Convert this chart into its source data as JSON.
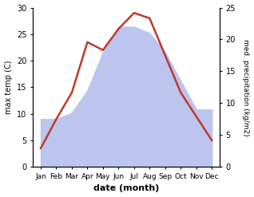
{
  "months": [
    "Jan",
    "Feb",
    "Mar",
    "Apr",
    "May",
    "Jun",
    "Jul",
    "Aug",
    "Sep",
    "Oct",
    "Nov",
    "Dec"
  ],
  "month_positions": [
    1,
    2,
    3,
    4,
    5,
    6,
    7,
    8,
    9,
    10,
    11,
    12
  ],
  "temperature": [
    3.5,
    9.0,
    14.0,
    23.5,
    22.0,
    26.0,
    29.0,
    28.0,
    21.0,
    14.0,
    9.5,
    5.0
  ],
  "precipitation": [
    7.5,
    7.5,
    8.5,
    12.0,
    18.0,
    22.0,
    22.0,
    21.0,
    18.0,
    13.5,
    9.0,
    9.0
  ],
  "temp_color": "#c0392b",
  "precip_color": "#bbc5ee",
  "temp_ylim": [
    0,
    30
  ],
  "precip_ylim": [
    0,
    25
  ],
  "temp_yticks": [
    0,
    5,
    10,
    15,
    20,
    25,
    30
  ],
  "precip_yticks": [
    0,
    5,
    10,
    15,
    20,
    25
  ],
  "xlabel": "date (month)",
  "ylabel_left": "max temp (C)",
  "ylabel_right": "med. precipitation (kg/m2)",
  "background_color": "#ffffff"
}
